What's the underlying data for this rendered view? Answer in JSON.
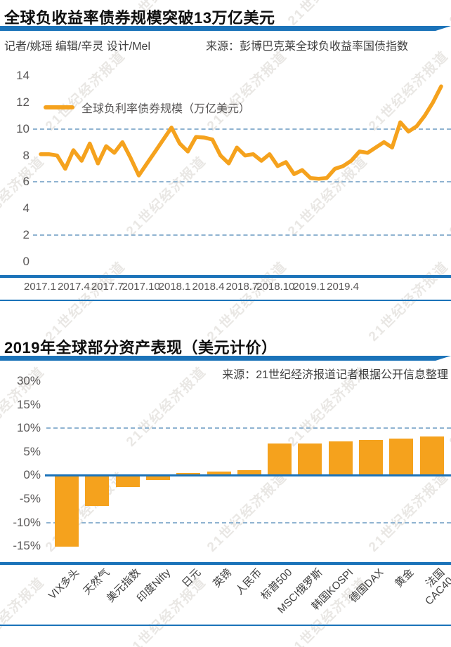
{
  "page": {
    "watermark": "21世纪经济报道"
  },
  "chart1": {
    "title": "全球负收益率债券规模突破13万亿美元",
    "byline": "记者/姚瑶  编辑/辛灵  设计/Mel",
    "source": "来源：彭博巴克莱全球负收益率国债指数",
    "legend": "全球负利率债券规模（万亿美元）"
  },
  "chart2": {
    "title": "2019年全球部分资产表现（美元计价）",
    "source": "来源：21世纪经济报道记者根据公开信息整理"
  },
  "colors": {
    "accent_blue": "#1b73b9",
    "grid_dashed_blue": "#8fb3d1",
    "series_orange": "#f5a21d",
    "axis_text_gray": "#595757"
  },
  "chart_data": [
    {
      "type": "line",
      "title": "全球负收益率债券规模突破13万亿美元",
      "series": [
        {
          "name": "全球负利率债券规模（万亿美元）",
          "values": [
            8.1,
            8.1,
            8.0,
            7.0,
            8.4,
            7.6,
            8.9,
            7.4,
            8.7,
            8.2,
            9.0,
            7.8,
            6.5,
            7.4,
            8.3,
            9.2,
            10.1,
            8.9,
            8.3,
            9.4,
            9.35,
            9.2,
            8.0,
            7.4,
            8.6,
            8.0,
            8.1,
            7.6,
            8.1,
            7.2,
            7.5,
            6.6,
            6.9,
            6.3,
            6.25,
            6.3,
            7.0,
            7.2,
            7.6,
            8.3,
            8.2,
            8.6,
            9.0,
            8.6,
            10.5,
            9.8,
            10.2,
            11.0,
            12.0,
            13.2
          ]
        }
      ],
      "x_tick_labels": [
        "2017.1",
        "2017.4",
        "2017.7",
        "2017.10",
        "2018.1",
        "2018.4",
        "2018.7",
        "2018.10",
        "2019.1",
        "2019.4"
      ],
      "y_ticks": [
        14,
        12,
        10,
        8,
        6,
        4,
        2,
        0
      ],
      "gridlines_at": [
        10,
        6,
        2
      ],
      "ylim": [
        0,
        14
      ],
      "ylabel": "万亿美元",
      "legend_position": "top-left",
      "line_color": "#f5a21d",
      "note": "values estimated from gridlines; last value ≈13.2 trillion USD"
    },
    {
      "type": "bar",
      "title": "2019年全球部分资产表现（美元计价）",
      "categories": [
        "VIX多头",
        "天然气",
        "美元指数",
        "印度Nifty",
        "日元",
        "英镑",
        "人民币",
        "标普500",
        "MSCI俄罗斯",
        "韩国KOSPI",
        "德国DAX",
        "黄金",
        "法国\nCAC40"
      ],
      "values": [
        -14.8,
        -6.3,
        -2.2,
        -0.7,
        0.3,
        0.6,
        0.9,
        6.5,
        6.6,
        7.0,
        7.3,
        7.6,
        8.0
      ],
      "unit": "%",
      "y_tick_labels": [
        "30%",
        "15%",
        "10%",
        "5%",
        "0%",
        "-5%",
        "-10%",
        "-15%"
      ],
      "gridline_labels": [
        "10%",
        "-10%"
      ],
      "zero_line": true,
      "bar_color": "#f5a21d",
      "note": "values in percent, estimated from gridlines"
    }
  ]
}
